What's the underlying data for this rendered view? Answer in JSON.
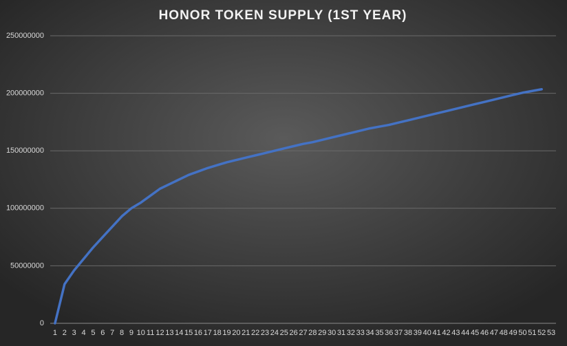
{
  "chart_data": {
    "type": "line",
    "title": "HONOR TOKEN SUPPLY (1ST YEAR)",
    "categories": [
      "1",
      "2",
      "3",
      "4",
      "5",
      "6",
      "7",
      "8",
      "9",
      "10",
      "11",
      "12",
      "13",
      "14",
      "15",
      "16",
      "17",
      "18",
      "19",
      "20",
      "21",
      "22",
      "23",
      "24",
      "25",
      "26",
      "27",
      "28",
      "29",
      "30",
      "31",
      "32",
      "33",
      "34",
      "35",
      "36",
      "37",
      "38",
      "39",
      "40",
      "41",
      "42",
      "43",
      "44",
      "45",
      "46",
      "47",
      "48",
      "49",
      "50",
      "51",
      "52",
      "53"
    ],
    "series": [
      {
        "name": "Supply",
        "color": "#4472c4",
        "values": [
          0,
          34000000,
          46000000,
          56000000,
          66000000,
          75000000,
          84000000,
          93000000,
          100000000,
          105000000,
          111000000,
          117000000,
          121000000,
          125000000,
          129000000,
          132000000,
          135000000,
          137500000,
          140000000,
          142000000,
          144000000,
          146000000,
          148000000,
          150000000,
          152000000,
          154000000,
          156000000,
          157500000,
          159500000,
          161500000,
          163500000,
          165500000,
          167500000,
          169500000,
          171000000,
          172500000,
          174500000,
          176500000,
          178500000,
          180500000,
          182500000,
          184500000,
          186500000,
          188500000,
          190500000,
          192500000,
          194500000,
          196500000,
          198500000,
          200500000,
          202000000,
          203500000,
          null
        ]
      }
    ],
    "ylim": [
      0,
      250000000
    ],
    "yticks": [
      0,
      50000000,
      100000000,
      150000000,
      200000000,
      250000000
    ],
    "grid": true
  }
}
